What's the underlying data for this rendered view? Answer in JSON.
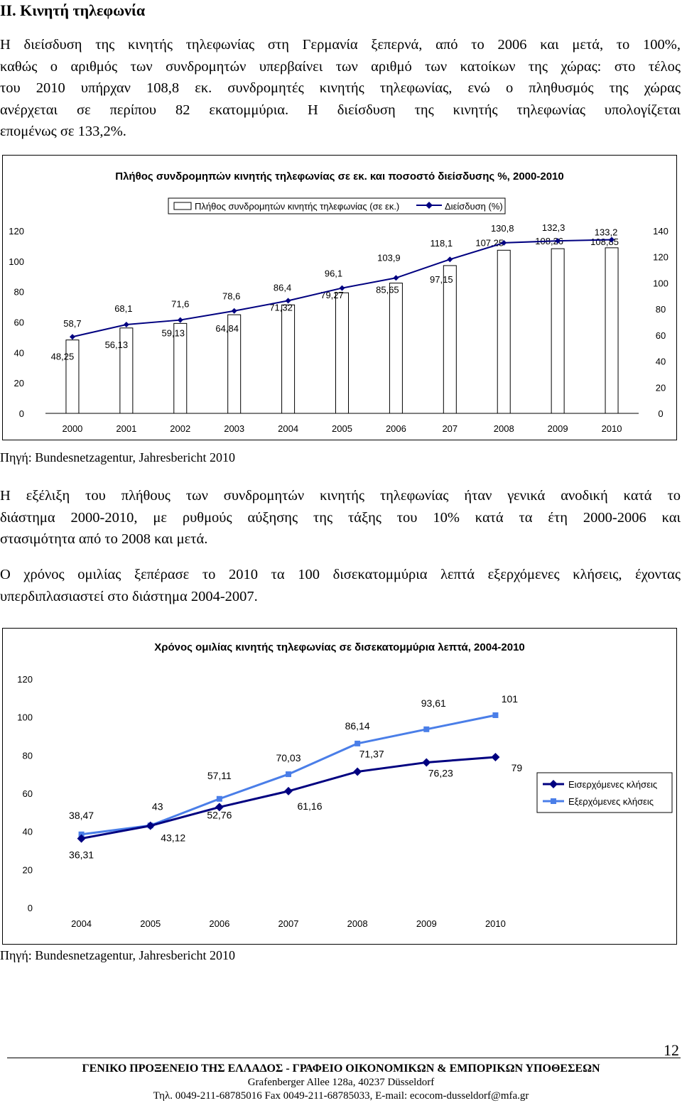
{
  "heading": "II. Κινητή τηλεφωνία",
  "intro_lines": [
    "Η διείσδυση της κινητής τηλεφωνίας στη Γερμανία ξεπερνά, από το 2006 και μετά, το 100%,",
    "καθώς ο αριθμός των συνδρομητών υπερβαίνει των αριθμό των κατοίκων της χώρας: στο τέλος",
    "του 2010 υπήρχαν 108,8 εκ. συνδρομητές κινητής τηλεφωνίας, ενώ ο πληθυσμός της χώρας",
    "ανέρχεται σε περίπου 82 εκατομμύρια. Η διείσδυση της κινητής τηλεφωνίας υπολογίζεται",
    "επομένως σε 133,2%."
  ],
  "source1": "Πηγή: Bundesnetzagentur, Jahresbericht 2010",
  "para2_lines": [
    "Η εξέλιξη του πλήθους των συνδρομητών κινητής τηλεφωνίας ήταν γενικά ανοδική κατά το",
    "διάστημα 2000-2010, με ρυθμούς αύξησης της τάξης του 10% κατά τα έτη 2000-2006 και",
    "στασιμότητα από το 2008 και μετά."
  ],
  "para3_lines": [
    "Ο χρόνος ομιλίας ξεπέρασε το 2010 τα 100 δισεκατομμύρια λεπτά εξερχόμενες κλήσεις, έχοντας",
    "υπερδιπλασιαστεί στο διάστημα 2004-2007."
  ],
  "source2": "Πηγή: Bundesnetzagentur, Jahresbericht 2010",
  "page_number": "12",
  "footer": {
    "line1": "ΓΕΝΙΚΟ ΠΡΟΞΕΝΕΙΟ ΤΗΣ ΕΛΛΑΔΟΣ - ΓΡΑΦΕΙΟ ΟΙΚΟΝΟΜΙΚΩΝ & ΕΜΠΟΡΙΚΩΝ ΥΠΟΘΕΣΕΩΝ",
    "line2": "Grafenberger Allee 128a, 40237 Düsseldorf",
    "line3": "Τηλ. 0049-211-68785016 Fax 0049-211-68785033, E-mail: ecocom-dusseldorf@mfa.gr"
  },
  "chart_data": [
    {
      "type": "bar+line",
      "title": "Πλήθος συνδρομηπών κινητής τηλεφωνίας σε εκ. και ποσοστό διείσδυσης %, 2000-2010",
      "categories": [
        "2000",
        "2001",
        "2002",
        "2003",
        "2004",
        "2005",
        "2006",
        "207",
        "2008",
        "2009",
        "2010"
      ],
      "series": [
        {
          "name": "Πλήθος συνδρομητών κινητής τηλεφωνίας (σε εκ.)",
          "kind": "bar",
          "axis": "left",
          "values": [
            48.25,
            56.13,
            59.13,
            64.84,
            71.32,
            79.27,
            85.65,
            97.15,
            107.25,
            108.26,
            108.85
          ],
          "labels": [
            "48,25",
            "56,13",
            "59,13",
            "64,84",
            "71,32",
            "79,27",
            "85,65",
            "97,15",
            "107,25",
            "108,26",
            "108,85"
          ]
        },
        {
          "name": "Διείσδυση (%)",
          "kind": "line",
          "axis": "right",
          "color": "#000080",
          "values": [
            58.7,
            68.1,
            71.6,
            78.6,
            86.4,
            96.1,
            103.9,
            118.1,
            130.8,
            132.3,
            133.2
          ],
          "labels": [
            "58,7",
            "68,1",
            "71,6",
            "78,6",
            "86,4",
            "96,1",
            "103,9",
            "118,1",
            "130,8",
            "132,3",
            "133,2"
          ]
        }
      ],
      "y_left": {
        "range": [
          0,
          120
        ],
        "ticks": [
          "0",
          "20",
          "40",
          "60",
          "80",
          "100",
          "120"
        ]
      },
      "y_right": {
        "range": [
          0,
          140
        ],
        "ticks": [
          "0",
          "20",
          "40",
          "60",
          "80",
          "100",
          "120",
          "140"
        ]
      },
      "legend": "top",
      "grid": false
    },
    {
      "type": "line",
      "title": "Χρόνος ομιλίας κινητής τηλεφωνίας σε δισεκατομμύρια λεπτά, 2004-2010",
      "categories": [
        "2004",
        "2005",
        "2006",
        "2007",
        "2008",
        "2009",
        "2010"
      ],
      "series": [
        {
          "name": "Εισερχόμενες κλήσεις",
          "color": "#000080",
          "marker": "diamond",
          "values": [
            36.31,
            43,
            52.76,
            61.16,
            71.37,
            76.23,
            79
          ],
          "labels": [
            "36,31",
            "43",
            "52,76",
            "61,16",
            "71,37",
            "76,23",
            "79"
          ]
        },
        {
          "name": "Εξερχόμενες κλήσεις",
          "color": "#4a7ee8",
          "marker": "square",
          "values": [
            38.47,
            43.12,
            57.11,
            70.03,
            86.14,
            93.61,
            101
          ],
          "labels": [
            "38,47",
            "43,12",
            "57,11",
            "70,03",
            "86,14",
            "93,61",
            "101"
          ]
        }
      ],
      "y": {
        "range": [
          0,
          120
        ],
        "ticks": [
          "0",
          "20",
          "40",
          "60",
          "80",
          "100",
          "120"
        ]
      },
      "legend": "right",
      "grid": false
    }
  ]
}
